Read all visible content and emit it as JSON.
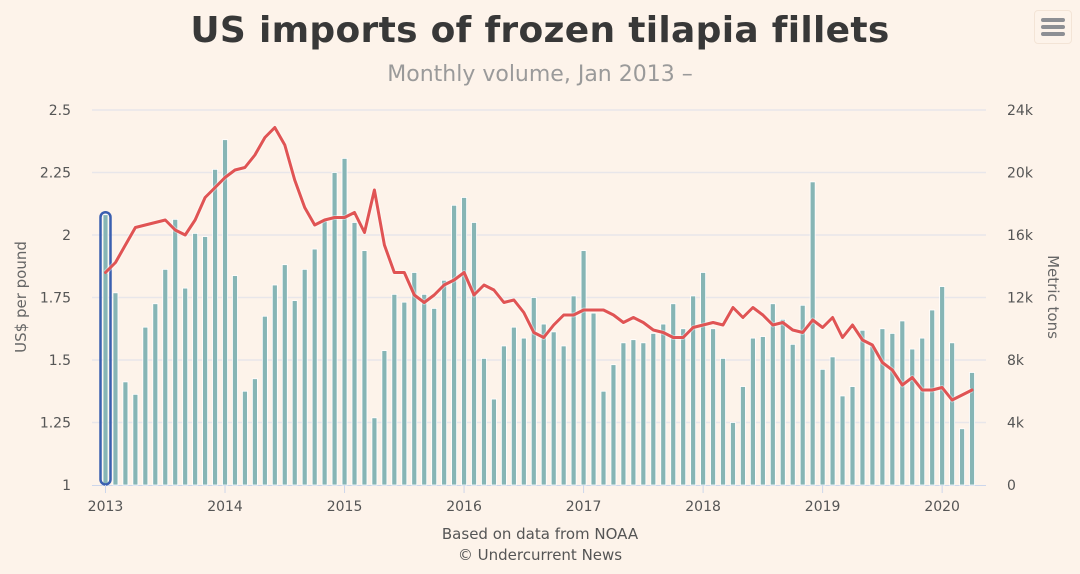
{
  "header": {
    "title": "US imports of frozen tilapia fillets",
    "subtitle": "Monthly volume, Jan 2013 –",
    "menu_icon": "hamburger-menu-icon"
  },
  "credits": {
    "line1": "Based on data from NOAA",
    "line2": "© Undercurrent News"
  },
  "chart_data": {
    "type": "bar+line",
    "title": "US imports of frozen tilapia fillets",
    "subtitle": "Monthly volume, Jan 2013 –",
    "x_start": "2013-01",
    "x_tick_labels": [
      "2013",
      "2014",
      "2015",
      "2016",
      "2017",
      "2018",
      "2019",
      "2020"
    ],
    "y_left": {
      "label": "US$ per pound",
      "range": [
        1,
        2.5
      ],
      "ticks": [
        "1",
        "1.25",
        "1.5",
        "1.75",
        "2",
        "2.25",
        "2.5"
      ],
      "tick_values": [
        1,
        1.25,
        1.5,
        1.75,
        2,
        2.25,
        2.5
      ]
    },
    "y_right": {
      "label": "Metric tons",
      "range": [
        0,
        24000
      ],
      "ticks": [
        "0",
        "4k",
        "8k",
        "12k",
        "16k",
        "20k",
        "24k"
      ],
      "tick_values": [
        0,
        4000,
        8000,
        12000,
        16000,
        20000,
        24000
      ]
    },
    "grid": true,
    "highlighted_point_index": 0,
    "colors": {
      "bars": "#86b5b5",
      "line": "#e05454",
      "highlight": "#3a5fb0",
      "grid": "#e8e6ea"
    },
    "series": [
      {
        "name": "Volume (metric tons)",
        "type": "bar",
        "axis": "right",
        "values": [
          17300,
          12300,
          6600,
          5800,
          10100,
          11600,
          13800,
          17000,
          12600,
          16100,
          15900,
          20200,
          22100,
          13400,
          6000,
          6800,
          10800,
          12800,
          14100,
          11800,
          13800,
          15100,
          16900,
          20000,
          20900,
          16800,
          15000,
          4300,
          8600,
          12200,
          11700,
          13600,
          12200,
          11300,
          13100,
          17900,
          18400,
          16800,
          8100,
          5500,
          8900,
          10100,
          9400,
          12000,
          10300,
          9800,
          8900,
          12100,
          15000,
          11000,
          6000,
          7700,
          9100,
          9300,
          9100,
          9700,
          10300,
          11600,
          10000,
          12100,
          13600,
          10000,
          8100,
          4000,
          6300,
          9400,
          9500,
          11600,
          10600,
          9000,
          11500,
          19400,
          7400,
          8200,
          5700,
          6300,
          9900,
          8900,
          10000,
          9700,
          10500,
          8700,
          9400,
          11200,
          12700,
          9100,
          3600,
          7200
        ]
      },
      {
        "name": "Price (US$ per pound)",
        "type": "line",
        "axis": "left",
        "values": [
          1.85,
          1.89,
          1.96,
          2.03,
          2.04,
          2.05,
          2.06,
          2.02,
          2.0,
          2.06,
          2.15,
          2.19,
          2.23,
          2.26,
          2.27,
          2.32,
          2.39,
          2.43,
          2.36,
          2.22,
          2.11,
          2.04,
          2.06,
          2.07,
          2.07,
          2.09,
          2.01,
          2.18,
          1.96,
          1.85,
          1.85,
          1.76,
          1.73,
          1.76,
          1.8,
          1.82,
          1.85,
          1.76,
          1.8,
          1.78,
          1.73,
          1.74,
          1.69,
          1.61,
          1.59,
          1.64,
          1.68,
          1.68,
          1.7,
          1.7,
          1.7,
          1.68,
          1.65,
          1.67,
          1.65,
          1.62,
          1.61,
          1.59,
          1.59,
          1.63,
          1.64,
          1.65,
          1.64,
          1.71,
          1.67,
          1.71,
          1.68,
          1.64,
          1.65,
          1.62,
          1.61,
          1.66,
          1.63,
          1.67,
          1.59,
          1.64,
          1.58,
          1.56,
          1.49,
          1.46,
          1.4,
          1.43,
          1.38,
          1.38,
          1.39,
          1.34,
          1.36,
          1.38
        ]
      }
    ]
  }
}
